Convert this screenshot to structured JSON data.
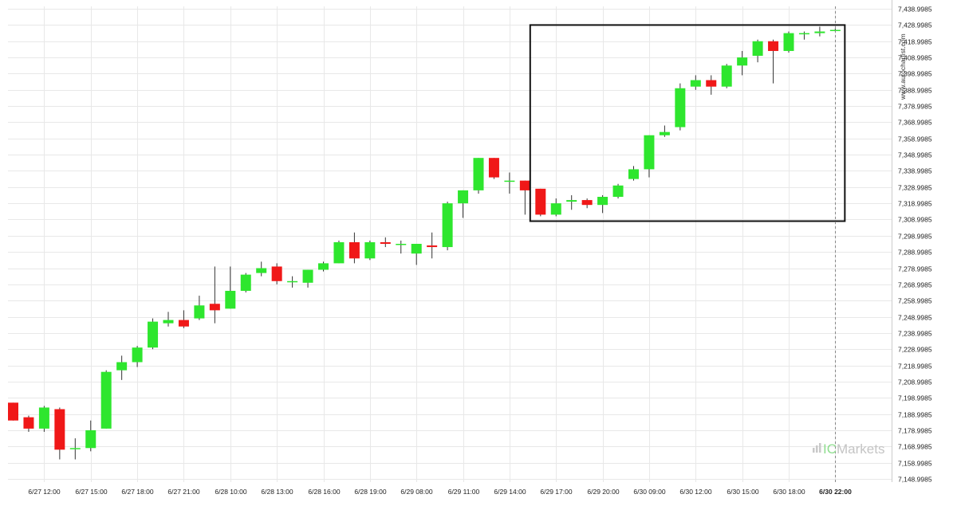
{
  "watermark": "www.autochartist.com",
  "brand": {
    "prefix": "IC",
    "name": "Markets"
  },
  "colors": {
    "up": "#2ee62e",
    "down": "#f01818",
    "wick": "#333333",
    "grid": "#e8e8e8",
    "box": "#111111",
    "lastLine": "#888888"
  },
  "chart_data": {
    "type": "candlestick",
    "ylim": [
      7146.9985,
      7440.9985
    ],
    "y_ticks": [
      "7,148.9985",
      "7,158.9985",
      "7,168.9985",
      "7,178.9985",
      "7,188.9985",
      "7,198.9985",
      "7,208.9985",
      "7,218.9985",
      "7,228.9985",
      "7,238.9985",
      "7,248.9985",
      "7,258.9985",
      "7,268.9985",
      "7,278.9985",
      "7,288.9985",
      "7,298.9985",
      "7,308.9985",
      "7,318.9985",
      "7,328.9985",
      "7,338.9985",
      "7,348.9985",
      "7,358.9985",
      "7,368.9985",
      "7,378.9985",
      "7,388.9985",
      "7,398.9985",
      "7,408.9985",
      "7,418.9985",
      "7,428.9985",
      "7,438.9985"
    ],
    "x_labels": [
      {
        "label": "6/27 12:00",
        "index": 2
      },
      {
        "label": "6/27 15:00",
        "index": 5
      },
      {
        "label": "6/27 18:00",
        "index": 8
      },
      {
        "label": "6/27 21:00",
        "index": 11
      },
      {
        "label": "6/28 10:00",
        "index": 14
      },
      {
        "label": "6/28 13:00",
        "index": 17
      },
      {
        "label": "6/28 16:00",
        "index": 20
      },
      {
        "label": "6/28 19:00",
        "index": 23
      },
      {
        "label": "6/29 08:00",
        "index": 26
      },
      {
        "label": "6/29 11:00",
        "index": 29
      },
      {
        "label": "6/29 14:00",
        "index": 32
      },
      {
        "label": "6/29 17:00",
        "index": 35
      },
      {
        "label": "6/29 20:00",
        "index": 38
      },
      {
        "label": "6/30 09:00",
        "index": 41
      },
      {
        "label": "6/30 12:00",
        "index": 44
      },
      {
        "label": "6/30 15:00",
        "index": 47
      },
      {
        "label": "6/30 18:00",
        "index": 50
      },
      {
        "label": "6/30 22:00",
        "index": 53,
        "bold": true
      }
    ],
    "candles": [
      {
        "o": 7196.0,
        "h": 7196.0,
        "l": 7185.0,
        "c": 7185.0
      },
      {
        "o": 7187.0,
        "h": 7188.0,
        "l": 7178.0,
        "c": 7180.0
      },
      {
        "o": 7180.0,
        "h": 7194.0,
        "l": 7178.0,
        "c": 7193.0
      },
      {
        "o": 7192.0,
        "h": 7193.0,
        "l": 7161.0,
        "c": 7167.0
      },
      {
        "o": 7168.0,
        "h": 7174.0,
        "l": 7161.0,
        "c": 7168.0
      },
      {
        "o": 7168.0,
        "h": 7185.0,
        "l": 7166.0,
        "c": 7179.0
      },
      {
        "o": 7180.0,
        "h": 7216.0,
        "l": 7180.0,
        "c": 7215.0
      },
      {
        "o": 7216.0,
        "h": 7225.0,
        "l": 7210.0,
        "c": 7221.0
      },
      {
        "o": 7221.0,
        "h": 7231.0,
        "l": 7218.0,
        "c": 7230.0
      },
      {
        "o": 7230.0,
        "h": 7248.0,
        "l": 7229.0,
        "c": 7246.0
      },
      {
        "o": 7245.0,
        "h": 7252.0,
        "l": 7243.0,
        "c": 7247.0
      },
      {
        "o": 7247.0,
        "h": 7253.0,
        "l": 7242.0,
        "c": 7243.0
      },
      {
        "o": 7248.0,
        "h": 7262.0,
        "l": 7247.0,
        "c": 7256.0
      },
      {
        "o": 7257.0,
        "h": 7280.0,
        "l": 7245.0,
        "c": 7253.0
      },
      {
        "o": 7254.0,
        "h": 7280.0,
        "l": 7254.0,
        "c": 7265.0
      },
      {
        "o": 7265.0,
        "h": 7276.0,
        "l": 7264.0,
        "c": 7275.0
      },
      {
        "o": 7276.0,
        "h": 7283.0,
        "l": 7274.0,
        "c": 7279.0
      },
      {
        "o": 7280.0,
        "h": 7282.0,
        "l": 7269.0,
        "c": 7271.0
      },
      {
        "o": 7271.0,
        "h": 7274.0,
        "l": 7267.0,
        "c": 7271.0
      },
      {
        "o": 7270.0,
        "h": 7278.0,
        "l": 7267.0,
        "c": 7278.0
      },
      {
        "o": 7278.0,
        "h": 7283.0,
        "l": 7277.0,
        "c": 7282.0
      },
      {
        "o": 7282.0,
        "h": 7296.0,
        "l": 7282.0,
        "c": 7295.0
      },
      {
        "o": 7295.0,
        "h": 7301.0,
        "l": 7282.0,
        "c": 7285.0
      },
      {
        "o": 7285.0,
        "h": 7296.0,
        "l": 7284.0,
        "c": 7295.0
      },
      {
        "o": 7295.0,
        "h": 7298.0,
        "l": 7292.0,
        "c": 7294.0
      },
      {
        "o": 7294.0,
        "h": 7296.0,
        "l": 7288.0,
        "c": 7294.0
      },
      {
        "o": 7288.0,
        "h": 7294.0,
        "l": 7281.0,
        "c": 7294.0
      },
      {
        "o": 7293.0,
        "h": 7301.0,
        "l": 7285.0,
        "c": 7292.0
      },
      {
        "o": 7292.0,
        "h": 7320.0,
        "l": 7290.0,
        "c": 7319.0
      },
      {
        "o": 7319.0,
        "h": 7327.0,
        "l": 7310.0,
        "c": 7327.0
      },
      {
        "o": 7327.0,
        "h": 7347.0,
        "l": 7325.0,
        "c": 7347.0
      },
      {
        "o": 7347.0,
        "h": 7347.0,
        "l": 7334.0,
        "c": 7335.0
      },
      {
        "o": 7333.0,
        "h": 7338.0,
        "l": 7325.0,
        "c": 7333.0
      },
      {
        "o": 7333.0,
        "h": 7333.0,
        "l": 7312.0,
        "c": 7327.0
      },
      {
        "o": 7328.0,
        "h": 7328.0,
        "l": 7311.0,
        "c": 7312.0
      },
      {
        "o": 7312.0,
        "h": 7322.0,
        "l": 7311.0,
        "c": 7319.0
      },
      {
        "o": 7320.0,
        "h": 7324.0,
        "l": 7315.0,
        "c": 7321.0
      },
      {
        "o": 7321.0,
        "h": 7322.0,
        "l": 7316.0,
        "c": 7318.0
      },
      {
        "o": 7318.0,
        "h": 7324.0,
        "l": 7313.0,
        "c": 7323.0
      },
      {
        "o": 7323.0,
        "h": 7331.0,
        "l": 7322.0,
        "c": 7330.0
      },
      {
        "o": 7334.0,
        "h": 7342.0,
        "l": 7333.0,
        "c": 7340.0
      },
      {
        "o": 7340.0,
        "h": 7361.0,
        "l": 7335.0,
        "c": 7361.0
      },
      {
        "o": 7361.0,
        "h": 7367.0,
        "l": 7360.0,
        "c": 7363.0
      },
      {
        "o": 7366.0,
        "h": 7393.0,
        "l": 7364.0,
        "c": 7390.0
      },
      {
        "o": 7391.0,
        "h": 7398.0,
        "l": 7389.0,
        "c": 7395.0
      },
      {
        "o": 7395.0,
        "h": 7398.0,
        "l": 7386.0,
        "c": 7391.0
      },
      {
        "o": 7391.0,
        "h": 7405.0,
        "l": 7390.0,
        "c": 7404.0
      },
      {
        "o": 7404.0,
        "h": 7413.0,
        "l": 7398.0,
        "c": 7409.0
      },
      {
        "o": 7410.0,
        "h": 7420.0,
        "l": 7406.0,
        "c": 7419.0
      },
      {
        "o": 7419.0,
        "h": 7420.0,
        "l": 7393.0,
        "c": 7413.0
      },
      {
        "o": 7413.0,
        "h": 7425.0,
        "l": 7412.0,
        "c": 7424.0
      },
      {
        "o": 7424.0,
        "h": 7425.0,
        "l": 7420.0,
        "c": 7424.0
      },
      {
        "o": 7424.0,
        "h": 7428.0,
        "l": 7422.0,
        "c": 7425.0
      },
      {
        "o": 7426.0,
        "h": 7427.0,
        "l": 7425.0,
        "c": 7426.0
      }
    ],
    "pattern_box": {
      "from_index": 34,
      "to_index": 53,
      "low": 7308.0,
      "high": 7429.0
    },
    "last_index": 53
  }
}
